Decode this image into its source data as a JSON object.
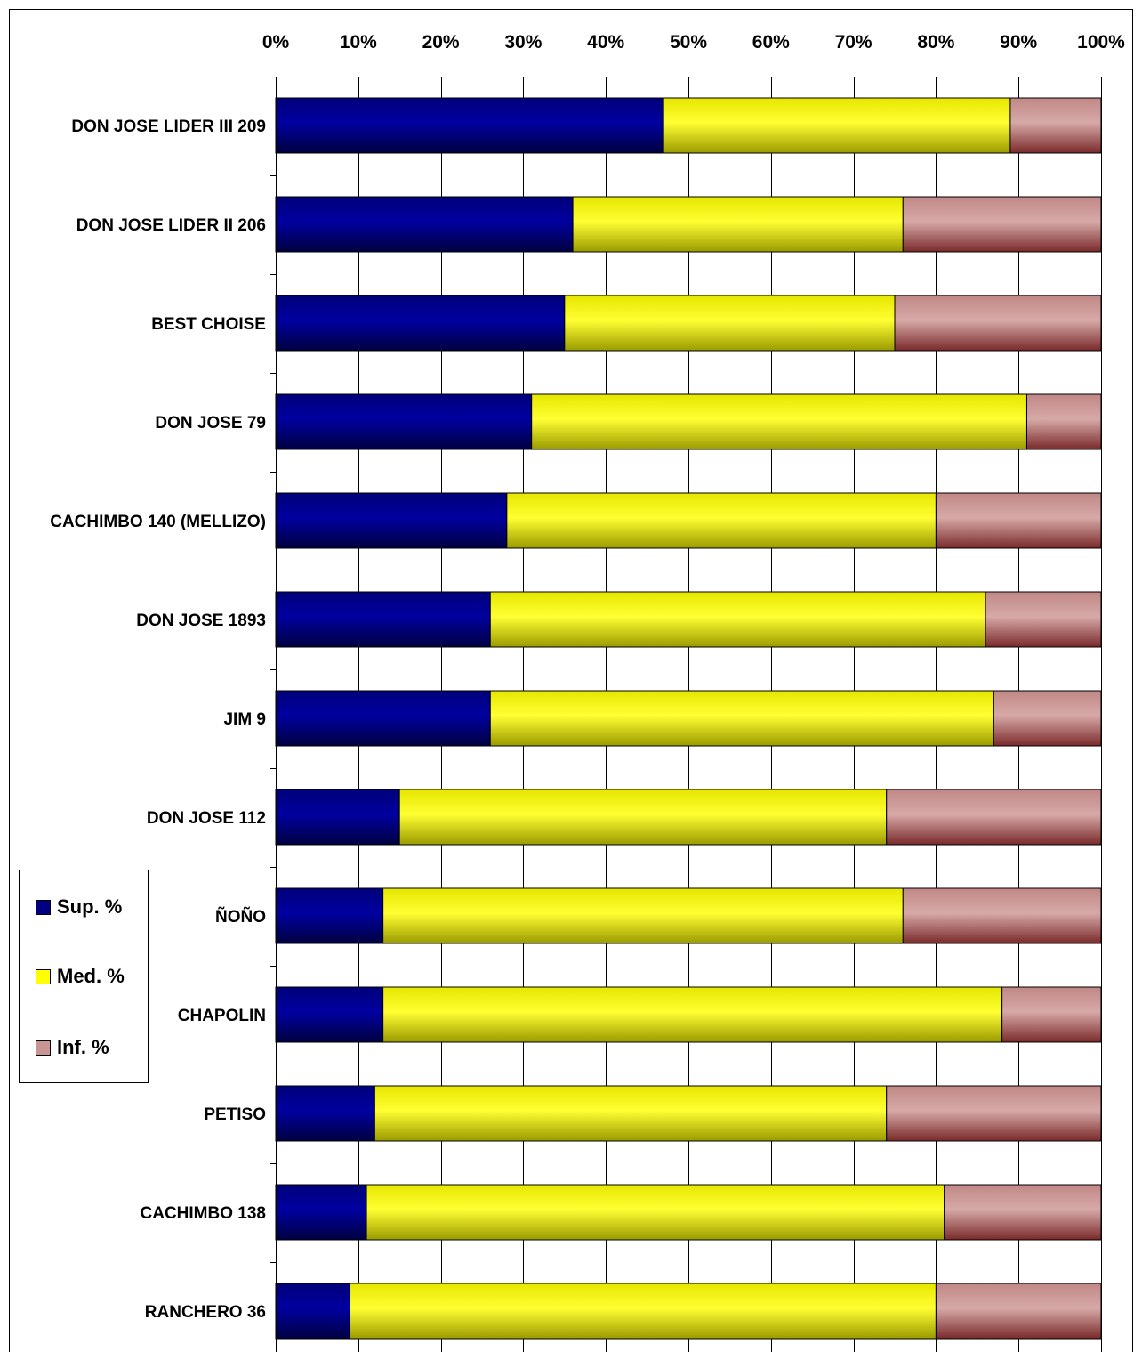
{
  "chart_data": {
    "type": "bar",
    "orientation": "horizontal",
    "stacked": true,
    "percent_stacked": true,
    "categories": [
      "DON JOSE LIDER III 209",
      "DON JOSE LIDER II 206",
      "BEST CHOISE",
      "DON JOSE 79",
      "CACHIMBO 140 (MELLIZO)",
      "DON JOSE 1893",
      "JIM 9",
      "DON JOSE 112",
      "ÑOÑO",
      "CHAPOLIN",
      "PETISO",
      "CACHIMBO 138",
      "RANCHERO 36"
    ],
    "series": [
      {
        "name": "Sup. %",
        "color": "#000080",
        "values": [
          47,
          36,
          35,
          31,
          28,
          26,
          26,
          15,
          13,
          13,
          12,
          11,
          9
        ]
      },
      {
        "name": "Med. %",
        "color": "#ffff00",
        "values": [
          42,
          40,
          40,
          60,
          52,
          60,
          61,
          59,
          63,
          75,
          62,
          70,
          71
        ]
      },
      {
        "name": "Inf. %",
        "color": "#c99594",
        "values": [
          11,
          24,
          25,
          9,
          20,
          14,
          13,
          26,
          24,
          12,
          26,
          19,
          20
        ]
      }
    ],
    "x_ticks": [
      "0%",
      "10%",
      "20%",
      "30%",
      "40%",
      "50%",
      "60%",
      "70%",
      "80%",
      "90%",
      "100%"
    ],
    "xlim": [
      0,
      100
    ],
    "title": "",
    "xlabel": "",
    "ylabel": "",
    "grid": true,
    "legend_position": "left"
  }
}
